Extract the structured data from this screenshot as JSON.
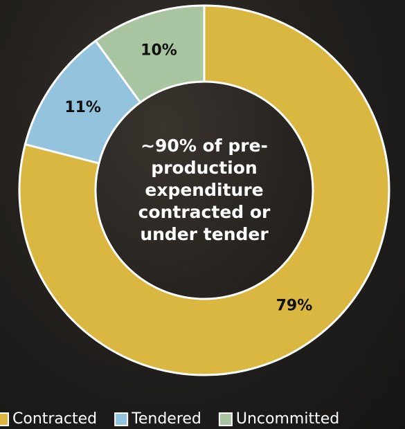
{
  "chart_data": {
    "type": "donut",
    "center_label": "~90% of pre-production expenditure contracted or under tender",
    "categories": [
      "Contracted",
      "Tendered",
      "Uncommitted"
    ],
    "values": [
      79,
      11,
      10
    ],
    "value_labels": [
      "79%",
      "11%",
      "10%"
    ],
    "colors": [
      "#d9b740",
      "#93c3dd",
      "#a8c4a1"
    ],
    "legend": "bottom"
  }
}
